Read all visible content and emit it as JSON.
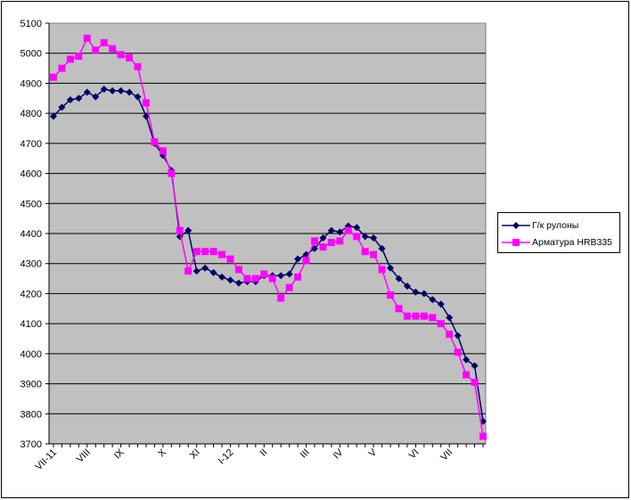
{
  "chart_data": {
    "type": "line",
    "title": "",
    "xlabel": "",
    "ylabel": "",
    "ylim": [
      3700,
      5100
    ],
    "yticks": [
      3700,
      3800,
      3900,
      4000,
      4100,
      4200,
      4300,
      4400,
      4500,
      4600,
      4700,
      4800,
      4900,
      5000,
      5100
    ],
    "x_tick_labels": [
      {
        "label": "VII-11",
        "index": 0
      },
      {
        "label": "VIII",
        "index": 4
      },
      {
        "label": "IX",
        "index": 8
      },
      {
        "label": "X",
        "index": 13
      },
      {
        "label": "XI",
        "index": 17
      },
      {
        "label": "I-12",
        "index": 21
      },
      {
        "label": "II",
        "index": 25
      },
      {
        "label": "III",
        "index": 30
      },
      {
        "label": "IV",
        "index": 34
      },
      {
        "label": "V",
        "index": 38
      },
      {
        "label": "VI",
        "index": 43
      },
      {
        "label": "VII",
        "index": 47
      }
    ],
    "grid": "horizontal",
    "plot_background": "#c0c0c0",
    "legend_position": "right",
    "series": [
      {
        "name": "Г/к рулоны",
        "color": "#000066",
        "marker": "diamond",
        "values": [
          4790,
          4820,
          4845,
          4850,
          4870,
          4855,
          4880,
          4875,
          4875,
          4870,
          4855,
          4790,
          4700,
          4660,
          4610,
          4390,
          4410,
          4275,
          4285,
          4270,
          4255,
          4245,
          4235,
          4240,
          4240,
          4260,
          4260,
          4260,
          4265,
          4315,
          4330,
          4350,
          4385,
          4410,
          4405,
          4425,
          4420,
          4390,
          4385,
          4350,
          4285,
          4250,
          4225,
          4205,
          4200,
          4180,
          4165,
          4120,
          4060,
          3980,
          3960,
          3775
        ]
      },
      {
        "name": "Арматура HRB335",
        "color": "#ff00ff",
        "marker": "square",
        "values": [
          4920,
          4950,
          4980,
          4990,
          5050,
          5010,
          5035,
          5015,
          4995,
          4985,
          4955,
          4835,
          4705,
          4675,
          4600,
          4410,
          4275,
          4340,
          4340,
          4340,
          4330,
          4315,
          4280,
          4250,
          4250,
          4265,
          4250,
          4185,
          4220,
          4255,
          4310,
          4375,
          4355,
          4370,
          4375,
          4410,
          4390,
          4340,
          4330,
          4280,
          4195,
          4150,
          4125,
          4125,
          4125,
          4120,
          4100,
          4065,
          4005,
          3930,
          3905,
          3725
        ]
      }
    ]
  }
}
